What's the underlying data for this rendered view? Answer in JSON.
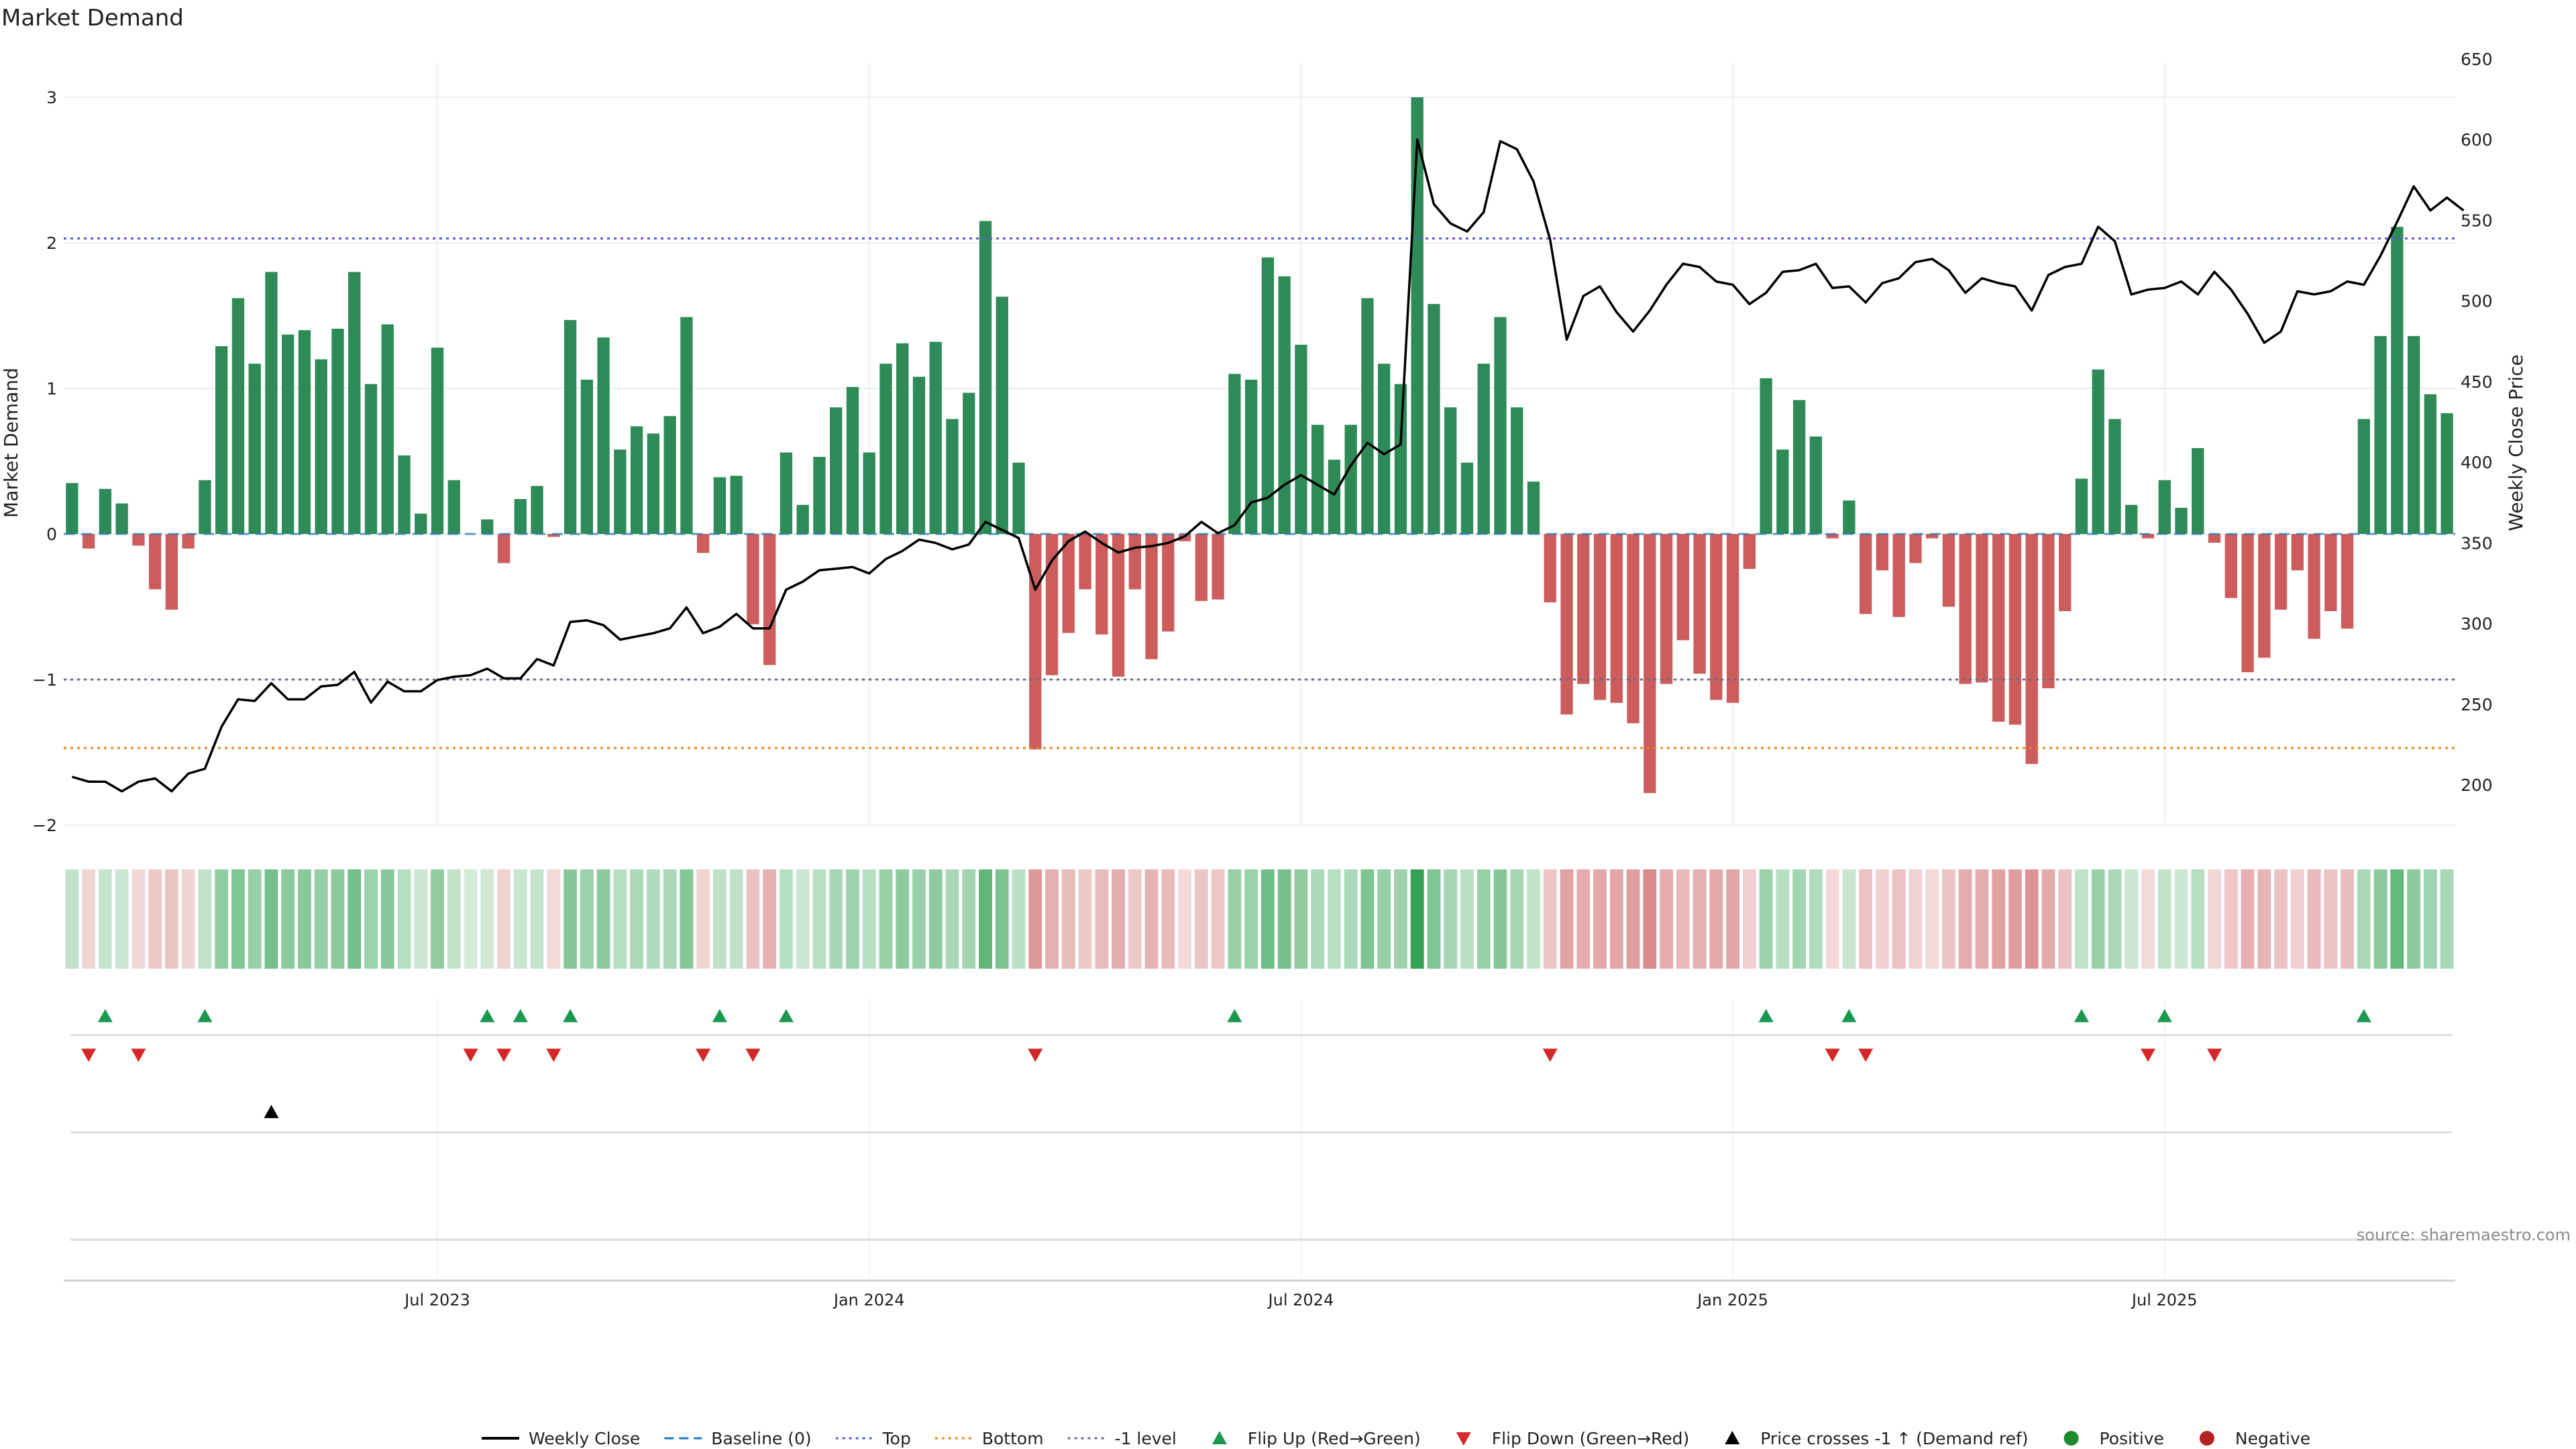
{
  "chart_data": {
    "type": "bar+line",
    "title": "Market Demand",
    "ylabel": "Market Demand",
    "y2label": "Weekly Close Price",
    "ylim": [
      -2.2,
      3.05
    ],
    "y2lim": [
      160,
      650
    ],
    "yticks": [
      -2,
      -1,
      0,
      1,
      2,
      3
    ],
    "yticklabels": [
      "−2",
      "−1",
      "0",
      "1",
      "2",
      "3"
    ],
    "y2ticks": [
      200,
      250,
      300,
      350,
      400,
      450,
      500,
      550,
      600,
      650
    ],
    "y2ticklabels": [
      "200",
      "250",
      "300",
      "350",
      "400",
      "450",
      "500",
      "550",
      "600",
      "650"
    ],
    "xticks": [
      22,
      48,
      74,
      100,
      126
    ],
    "xticklabels": [
      "Jul 2023",
      "Jan 2024",
      "Jul 2024",
      "Jan 2025",
      "Jul 2025"
    ],
    "reference_lines": [
      {
        "name": "Top",
        "value": 2.03,
        "color": "#5b5bd6",
        "dash": "dotted"
      },
      {
        "name": "Bottom",
        "value": -1.47,
        "color": "#e08a1e",
        "dash": "dotted"
      },
      {
        "name": "-1 level",
        "value": -1.0,
        "color": "#6a6a8a",
        "dash": "dotted"
      },
      {
        "name": "Baseline (0)",
        "value": 0,
        "color": "#1f77b4",
        "dash": "dashed"
      }
    ],
    "demand": [
      0.35,
      -0.1,
      0.31,
      0.21,
      -0.08,
      -0.38,
      -0.52,
      -0.1,
      0.37,
      1.29,
      1.62,
      1.17,
      1.8,
      1.37,
      1.4,
      1.2,
      1.41,
      1.8,
      1.03,
      1.44,
      0.54,
      0.14,
      1.28,
      0.37,
      0,
      0.1,
      -0.2,
      0.24,
      0.33,
      -0.02,
      1.47,
      1.06,
      1.35,
      0.58,
      0.74,
      0.69,
      0.81,
      1.49,
      -0.13,
      0.39,
      0.4,
      -0.62,
      -0.9,
      0.56,
      0.2,
      0.53,
      0.87,
      1.01,
      0.56,
      1.17,
      1.31,
      1.08,
      1.32,
      0.79,
      0.97,
      2.15,
      1.63,
      0.49,
      -1.48,
      -0.97,
      -0.68,
      -0.38,
      -0.69,
      -0.98,
      -0.38,
      -0.86,
      -0.67,
      -0.05,
      -0.46,
      -0.45,
      1.1,
      1.06,
      1.9,
      1.77,
      1.3,
      0.75,
      0.51,
      0.75,
      1.62,
      1.17,
      1.03,
      3.0,
      1.58,
      0.87,
      0.49,
      1.17,
      1.49,
      0.87,
      0.36,
      -0.47,
      -1.24,
      -1.03,
      -1.14,
      -1.16,
      -1.3,
      -1.78,
      -1.03,
      -0.73,
      -0.96,
      -1.14,
      -1.16,
      -0.24,
      1.07,
      0.58,
      0.92,
      0.67,
      -0.03,
      0.23,
      -0.55,
      -0.25,
      -0.57,
      -0.2,
      -0.03,
      -0.5,
      -1.03,
      -1.02,
      -1.29,
      -1.31,
      -1.58,
      -1.06,
      -0.53,
      0.38,
      1.13,
      0.79,
      0.2,
      -0.03,
      0.37,
      0.18,
      0.59,
      -0.06,
      -0.44,
      -0.95,
      -0.85,
      -0.52,
      -0.25,
      -0.72,
      -0.53,
      -0.65,
      0.79,
      1.36,
      2.11,
      1.36,
      0.96,
      0.83
    ],
    "close": [
      205,
      202,
      202,
      196,
      202,
      204,
      196,
      207,
      210,
      236,
      253,
      252,
      263,
      253,
      253,
      261,
      262,
      270,
      251,
      264,
      258,
      258,
      265,
      267,
      268,
      272,
      266,
      266,
      278,
      274,
      301,
      302,
      299,
      290,
      292,
      294,
      297,
      310,
      294,
      298,
      306,
      297,
      297,
      321,
      326,
      333,
      334,
      335,
      331,
      340,
      345,
      352,
      350,
      346,
      349,
      363,
      358,
      353,
      321,
      339,
      351,
      357,
      350,
      344,
      347,
      348,
      350,
      354,
      363,
      356,
      361,
      375,
      378,
      386,
      392,
      386,
      380,
      398,
      412,
      405,
      411,
      600,
      560,
      548,
      543,
      555,
      599,
      594,
      574,
      538,
      476,
      503,
      509,
      493,
      481,
      494,
      510,
      523,
      521,
      512,
      510,
      498,
      505,
      518,
      519,
      523,
      508,
      509,
      499,
      511,
      514,
      524,
      526,
      519,
      505,
      514,
      511,
      509,
      494,
      516,
      521,
      523,
      546,
      537,
      504,
      507,
      508,
      512,
      504,
      518,
      507,
      492,
      474,
      481,
      506,
      504,
      506,
      512,
      510,
      528,
      549,
      571,
      556,
      564,
      556
    ],
    "flip_up": [
      2,
      8,
      25,
      27,
      30,
      39,
      43,
      70,
      102,
      107,
      121,
      126,
      138
    ],
    "flip_down": [
      1,
      4,
      24,
      26,
      29,
      38,
      41,
      58,
      89,
      106,
      108,
      125,
      129
    ],
    "price_cross": [
      12
    ],
    "source": "source: sharemaestro.com",
    "legend": [
      {
        "label": "Weekly Close",
        "kind": "line",
        "color": "#000000"
      },
      {
        "label": "Baseline (0)",
        "kind": "dash",
        "color": "#1f77b4"
      },
      {
        "label": "Top",
        "kind": "dot",
        "color": "#5b5bd6"
      },
      {
        "label": "Bottom",
        "kind": "dot",
        "color": "#e08a1e"
      },
      {
        "label": "-1 level",
        "kind": "dot",
        "color": "#6a6a8a"
      },
      {
        "label": "Flip Up (Red→Green)",
        "kind": "tri-up",
        "color": "#1a9850"
      },
      {
        "label": "Flip Down (Green→Red)",
        "kind": "tri-down",
        "color": "#d62728"
      },
      {
        "label": "Price crosses -1 ↑ (Demand ref)",
        "kind": "tri-up",
        "color": "#000000"
      },
      {
        "label": "Positive",
        "kind": "circle",
        "color": "#1e8a2e"
      },
      {
        "label": "Negative",
        "kind": "circle",
        "color": "#b22222"
      }
    ],
    "colors": {
      "positive": "#2e8b57",
      "negative": "#cd5c5c",
      "heat_pos": "#2a9d4a",
      "heat_neg": "#c44a4a"
    }
  }
}
